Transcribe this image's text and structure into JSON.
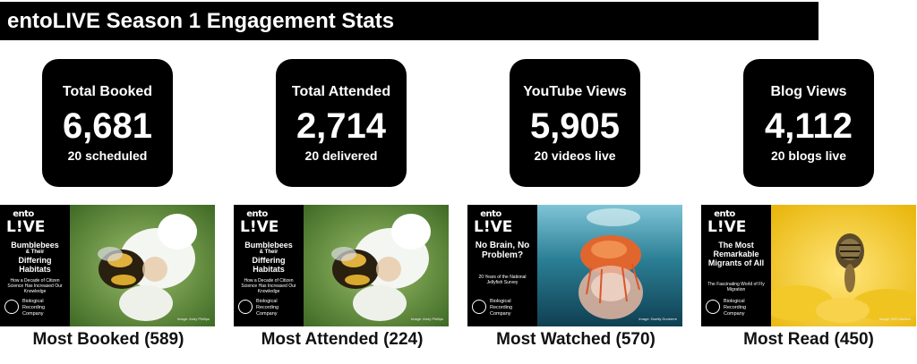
{
  "title": "entoLIVE Season 1 Engagement Stats",
  "stats": [
    {
      "label": "Total Booked",
      "value": "6,681",
      "sub": "20 scheduled"
    },
    {
      "label": "Total Attended",
      "value": "2,714",
      "sub": "20 delivered"
    },
    {
      "label": "YouTube Views",
      "value": "5,905",
      "sub": "20 videos live"
    },
    {
      "label": "Blog Views",
      "value": "4,112",
      "sub": "20 blogs live"
    }
  ],
  "logo": {
    "top": "ento",
    "bottom": "L!VE"
  },
  "org": {
    "line1": "Biological",
    "line2": "Recording",
    "line3": "Company"
  },
  "thumbs": [
    {
      "title_a": "Bumblebees",
      "title_small": "& Their",
      "title_b": "Differing Habitats",
      "desc": "How a Decade of Citizen Science Has Increased Our Knowledge",
      "image": "bumblebee-on-flower",
      "credit": "Image: Andy Phillips"
    },
    {
      "title_a": "Bumblebees",
      "title_small": "& Their",
      "title_b": "Differing Habitats",
      "desc": "How a Decade of Citizen Science Has Increased Our Knowledge",
      "image": "bumblebee-on-flower",
      "credit": "Image: Andy Phillips"
    },
    {
      "title_a": "No Brain, No Problem?",
      "title_small": "",
      "title_b": "",
      "desc": "20 Years of the National Jellyfish Survey",
      "image": "jellyfish-underwater",
      "credit": "Image: Dwelly Dunkerre"
    },
    {
      "title_a": "The Most Remarkable Migrants of All",
      "title_small": "",
      "title_b": "",
      "desc": "The Fascinating World of Fly Migration",
      "image": "hoverfly-on-yellow-flower",
      "credit": "Image: Will Hawkes"
    }
  ],
  "captions": [
    "Most Booked (589)",
    "Most Attended (224)",
    "Most Watched (570)",
    "Most Read (450)"
  ],
  "colors": {
    "card_bg": "#000000",
    "text_light": "#ffffff",
    "caption": "#111111"
  }
}
